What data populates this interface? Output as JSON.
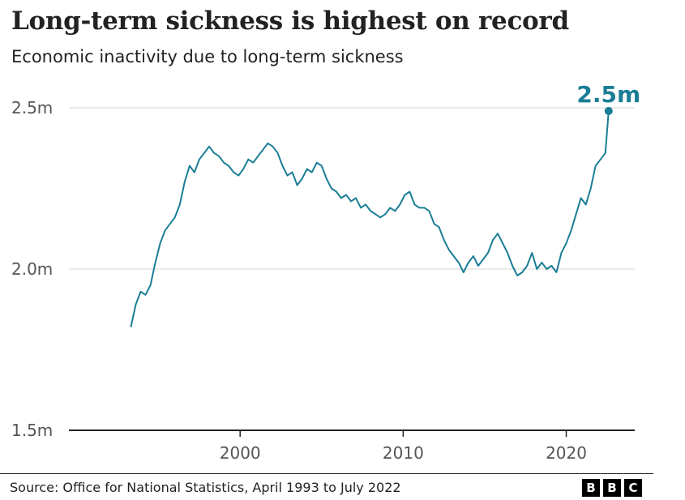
{
  "header": {
    "title": "Long-term sickness is highest on record",
    "subtitle": "Economic inactivity due to long-term sickness"
  },
  "footer": {
    "source": "Source: Office for National Statistics, April 1993 to July 2022",
    "logo_letters": [
      "B",
      "B",
      "C"
    ]
  },
  "colors": {
    "line": "#1a7d96",
    "grid": "#d4d4d4",
    "axis": "#222222",
    "tick_text": "#555555",
    "text": "#222222"
  },
  "chart_data": {
    "type": "line",
    "title": "Long-term sickness is highest on record",
    "subtitle": "Economic inactivity due to long-term sickness",
    "xlabel": "",
    "ylabel": "",
    "xlim": [
      1989.5,
      2024.2
    ],
    "ylim": [
      1.5,
      2.5
    ],
    "y_ticks": [
      {
        "value": 1.5,
        "label": "1.5m"
      },
      {
        "value": 2.0,
        "label": "2.0m"
      },
      {
        "value": 2.5,
        "label": "2.5m"
      }
    ],
    "x_ticks": [
      {
        "value": 2000,
        "label": "2000"
      },
      {
        "value": 2010,
        "label": "2010"
      },
      {
        "value": 2020,
        "label": "2020"
      }
    ],
    "grid": true,
    "legend": "none",
    "end_label": "2.5m",
    "series": [
      {
        "x": [
          1993.3,
          1993.6,
          1993.9,
          1994.2,
          1994.5,
          1994.8,
          1995.1,
          1995.4,
          1995.7,
          1996.0,
          1996.3,
          1996.6,
          1996.9,
          1997.2,
          1997.5,
          1997.8,
          1998.1,
          1998.4,
          1998.7,
          1999.0,
          1999.3,
          1999.6,
          1999.9,
          2000.2,
          2000.5,
          2000.8,
          2001.1,
          2001.4,
          2001.7,
          2002.0,
          2002.3,
          2002.6,
          2002.9,
          2003.2,
          2003.5,
          2003.8,
          2004.1,
          2004.4,
          2004.7,
          2005.0,
          2005.3,
          2005.6,
          2005.9,
          2006.2,
          2006.5,
          2006.8,
          2007.1,
          2007.4,
          2007.7,
          2008.0,
          2008.3,
          2008.6,
          2008.9,
          2009.2,
          2009.5,
          2009.8,
          2010.1,
          2010.4,
          2010.7,
          2011.0,
          2011.3,
          2011.6,
          2011.9,
          2012.2,
          2012.5,
          2012.8,
          2013.1,
          2013.4,
          2013.7,
          2014.0,
          2014.3,
          2014.6,
          2014.9,
          2015.2,
          2015.5,
          2015.8,
          2016.1,
          2016.4,
          2016.7,
          2017.0,
          2017.3,
          2017.6,
          2017.9,
          2018.2,
          2018.5,
          2018.8,
          2019.1,
          2019.4,
          2019.7,
          2020.0,
          2020.3,
          2020.6,
          2020.9,
          2021.2,
          2021.5,
          2021.8,
          2022.1,
          2022.4,
          2022.6
        ],
        "values": [
          1.82,
          1.89,
          1.93,
          1.92,
          1.95,
          2.02,
          2.08,
          2.12,
          2.14,
          2.16,
          2.2,
          2.27,
          2.32,
          2.3,
          2.34,
          2.36,
          2.38,
          2.36,
          2.35,
          2.33,
          2.32,
          2.3,
          2.29,
          2.31,
          2.34,
          2.33,
          2.35,
          2.37,
          2.39,
          2.38,
          2.36,
          2.32,
          2.29,
          2.3,
          2.26,
          2.28,
          2.31,
          2.3,
          2.33,
          2.32,
          2.28,
          2.25,
          2.24,
          2.22,
          2.23,
          2.21,
          2.22,
          2.19,
          2.2,
          2.18,
          2.17,
          2.16,
          2.17,
          2.19,
          2.18,
          2.2,
          2.23,
          2.24,
          2.2,
          2.19,
          2.19,
          2.18,
          2.14,
          2.13,
          2.09,
          2.06,
          2.04,
          2.02,
          1.99,
          2.02,
          2.04,
          2.01,
          2.03,
          2.05,
          2.09,
          2.11,
          2.08,
          2.05,
          2.01,
          1.98,
          1.99,
          2.01,
          2.05,
          2.0,
          2.02,
          2.0,
          2.01,
          1.99,
          2.05,
          2.08,
          2.12,
          2.17,
          2.22,
          2.2,
          2.25,
          2.32,
          2.34,
          2.36,
          2.49
        ]
      }
    ]
  }
}
